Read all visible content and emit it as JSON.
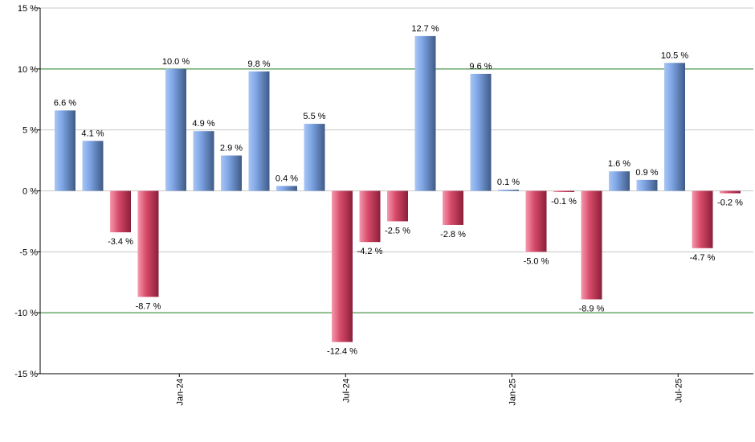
{
  "chart_data": {
    "type": "bar",
    "title": "",
    "xlabel": "",
    "ylabel": "",
    "ylim": [
      -15,
      15
    ],
    "y_ticks": [
      15,
      10,
      5,
      0,
      -5,
      -10,
      -15
    ],
    "y_tick_labels": [
      "15 %",
      "10 %",
      "5 %",
      "0 %",
      "-5 %",
      "-10 %",
      "-15 %"
    ],
    "x_tick_labels": [
      {
        "label": "Jan-24",
        "after_bar": 4
      },
      {
        "label": "Jul-24",
        "after_bar": 10
      },
      {
        "label": "Jan-25",
        "after_bar": 16
      },
      {
        "label": "Jul-25",
        "after_bar": 22
      }
    ],
    "values": [
      6.6,
      4.1,
      -3.4,
      -8.7,
      10.0,
      4.9,
      2.9,
      9.8,
      0.4,
      5.5,
      -12.4,
      -4.2,
      -2.5,
      12.7,
      -2.8,
      9.6,
      0.1,
      -5.0,
      -0.1,
      -8.9,
      1.6,
      0.9,
      10.5,
      -4.7,
      -0.2
    ],
    "value_labels": [
      "6.6 %",
      "4.1 %",
      "-3.4 %",
      "-8.7 %",
      "10.0 %",
      "4.9 %",
      "2.9 %",
      "9.8 %",
      "0.4 %",
      "5.5 %",
      "-12.4 %",
      "-4.2 %",
      "-2.5 %",
      "12.7 %",
      "-2.8 %",
      "9.6 %",
      "0.1 %",
      "-5.0 %",
      "-0.1 %",
      "-8.9 %",
      "1.6 %",
      "0.9 %",
      "10.5 %",
      "-4.7 %",
      "-0.2 %"
    ],
    "reference_lines": [
      10,
      -10
    ],
    "grid": true,
    "colors": {
      "positive_light": "#a9c6f5",
      "positive_mid": "#7fa6e6",
      "positive_dark": "#3f5a86",
      "negative_light": "#f49aae",
      "negative_mid": "#d84b6a",
      "negative_dark": "#8a1f3a",
      "grid": "#c8c8c8",
      "reference": "#1f7a1f",
      "axis": "#000000"
    }
  }
}
